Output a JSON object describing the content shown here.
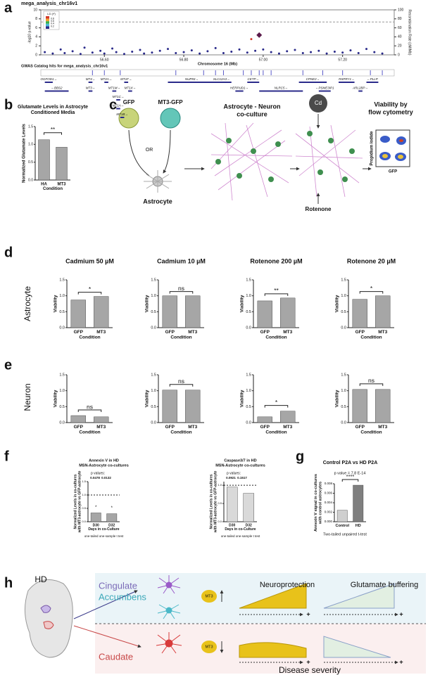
{
  "panels": {
    "a": {
      "label": "a",
      "title": "mega_analysis_chr16v1",
      "ylabel": "-log10 p-value",
      "y2label": "Recombination Rate (cM/Mb)",
      "xlabel": "Chromosome 16 (Mb)",
      "xlim": [
        56.44,
        57.33
      ],
      "xticks": [
        {
          "value": 56.6,
          "label": "56.60"
        },
        {
          "value": 56.8,
          "label": "56.80"
        },
        {
          "value": 57.0,
          "label": "57.00"
        },
        {
          "value": 57.2,
          "label": "57.20"
        }
      ],
      "ylim": [
        0,
        10
      ],
      "yticks": [
        0,
        2,
        4,
        6,
        8,
        10
      ],
      "y2lim": [
        0,
        100
      ],
      "y2ticks": [
        0,
        20,
        40,
        60,
        80,
        100
      ],
      "significance_line": 7.3,
      "legend_title": "LD (r²)",
      "legend_ticks": [
        0.8,
        0.6,
        0.4,
        0.2
      ],
      "points": {
        "x": [
          56.45,
          56.47,
          56.49,
          56.5,
          56.52,
          56.54,
          56.55,
          56.57,
          56.59,
          56.6,
          56.62,
          56.63,
          56.65,
          56.67,
          56.69,
          56.7,
          56.72,
          56.74,
          56.76,
          56.78,
          56.8,
          56.82,
          56.84,
          56.86,
          56.88,
          56.9,
          56.92,
          56.94,
          56.96,
          56.97,
          56.98,
          57.0,
          57.02,
          57.04,
          57.06,
          57.08,
          57.1,
          57.12,
          57.14,
          57.16,
          57.18,
          57.2,
          57.22,
          57.24,
          57.26,
          57.28,
          57.3
        ],
        "y": [
          0.6,
          0.3,
          1.2,
          0.4,
          0.8,
          0.2,
          1.6,
          0.5,
          0.9,
          0.3,
          1.4,
          0.6,
          0.2,
          0.7,
          1.1,
          0.3,
          0.5,
          0.9,
          1.3,
          0.4,
          0.6,
          1.0,
          0.3,
          0.8,
          1.5,
          0.4,
          0.7,
          1.2,
          0.5,
          3.5,
          0.9,
          1.2,
          0.6,
          0.3,
          0.8,
          1.1,
          0.4,
          0.6,
          0.9,
          0.3,
          0.7,
          0.5,
          1.0,
          0.4,
          1.3,
          0.6,
          0.3
        ]
      },
      "lead": {
        "x": 56.99,
        "y": 4.4
      },
      "gwas_title": "GWAS Catalog hits for mega_analysis_chr16v1",
      "gwas_hits": [
        56.57,
        56.6,
        56.64,
        56.78,
        56.85,
        56.88,
        56.9,
        56.95,
        56.97,
        56.99,
        57.0,
        57.02,
        57.1,
        57.15,
        57.2,
        57.27,
        57.3
      ],
      "genes": [
        {
          "name": "OGFOD1→",
          "start": 56.45,
          "end": 56.47
        },
        {
          "name": "←BBS2",
          "start": 56.45,
          "end": 56.51
        },
        {
          "name": "MT4→",
          "start": 56.56,
          "end": 56.57
        },
        {
          "name": "MT3→",
          "start": 56.56,
          "end": 56.57
        },
        {
          "name": "MT2A→",
          "start": 56.6,
          "end": 56.61
        },
        {
          "name": "MT1M→",
          "start": 56.62,
          "end": 56.63
        },
        {
          "name": "MT1F→",
          "start": 56.65,
          "end": 56.66
        },
        {
          "name": "MT1X→",
          "start": 56.66,
          "end": 56.67
        },
        {
          "name": "MT1C→",
          "start": 56.63,
          "end": 56.64
        },
        {
          "name": "MT1A→",
          "start": 56.63,
          "end": 56.64
        },
        {
          "name": "MT1B→",
          "start": 56.64,
          "end": 56.65
        },
        {
          "name": "NUP93→",
          "start": 56.76,
          "end": 56.88
        },
        {
          "name": "SLC12A3→",
          "start": 56.87,
          "end": 56.92
        },
        {
          "name": "HERPUD1→",
          "start": 56.93,
          "end": 56.95
        },
        {
          "name": "CETP→",
          "start": 56.96,
          "end": 56.99
        },
        {
          "name": "NLRC5→",
          "start": 56.99,
          "end": 57.1
        },
        {
          "name": "CPNE2→",
          "start": 57.09,
          "end": 57.16
        },
        {
          "name": "←PSME3IP1",
          "start": 57.14,
          "end": 57.17
        },
        {
          "name": "RSPRY1→",
          "start": 57.19,
          "end": 57.23
        },
        {
          "name": "ARL2BP→",
          "start": 57.24,
          "end": 57.25
        },
        {
          "name": "←PLLP",
          "start": 57.26,
          "end": 57.29
        }
      ]
    },
    "b": {
      "label": "b",
      "title": [
        "Glutamate Levels in Astrocyte",
        "Conditioned Media"
      ],
      "ylabel": [
        "Normalized Glutamate Levels"
      ],
      "xlabel": "Condition",
      "categories": [
        "HA",
        "MT3"
      ],
      "values": [
        1.13,
        0.92
      ],
      "color": "#a6a6a6",
      "ylim": [
        0,
        1.5
      ],
      "yticks": [
        {
          "value": 0,
          "label": "0.0"
        },
        0.5,
        {
          "value": 1,
          "label": "1.0"
        },
        1.5
      ],
      "sig": "**"
    },
    "c": {
      "label": "c",
      "gfp": "GFP",
      "mt3_gfp": "MT3-GFP",
      "or": "OR",
      "astrocyte": "Astrocyte",
      "coculture": [
        "Astrocyte - Neuron",
        "co-culture"
      ],
      "cd": "Cd",
      "rotenone": "Rotenone",
      "viability": [
        "Viability by",
        "flow cytometry"
      ],
      "flow_y": "Propidium iodide",
      "flow_x": "GFP"
    },
    "d": {
      "label": "d",
      "row_label": "Astrocyte",
      "charts": [
        {
          "title": "Cadmium 50 µM",
          "ylabel": [
            "Viability"
          ],
          "xlabel": "Condition",
          "categories": [
            "GFP",
            "MT3"
          ],
          "values": [
            0.87,
            0.98
          ],
          "color": "#a6a6a6",
          "ylim": [
            0,
            1.5
          ],
          "yticks": [
            {
              "value": 0,
              "label": "0.0"
            },
            0.5,
            {
              "value": 1,
              "label": "1.0"
            },
            1.5
          ],
          "sig": "*"
        },
        {
          "title": "Cadmium 10 µM",
          "ylabel": [
            "Viability"
          ],
          "xlabel": "Condition",
          "categories": [
            "GFP",
            "MT3"
          ],
          "values": [
            1.0,
            1.0
          ],
          "color": "#a6a6a6",
          "ylim": [
            0,
            1.5
          ],
          "yticks": [
            {
              "value": 0,
              "label": "0.0"
            },
            0.5,
            {
              "value": 1,
              "label": "1.0"
            },
            1.5
          ],
          "sig": "ns"
        },
        {
          "title": "Rotenone 200 µM",
          "ylabel": [
            "Viability"
          ],
          "xlabel": "Condition",
          "categories": [
            "GFP",
            "MT3"
          ],
          "values": [
            0.84,
            0.93
          ],
          "color": "#a6a6a6",
          "ylim": [
            0,
            1.5
          ],
          "yticks": [
            {
              "value": 0,
              "label": "0.0"
            },
            0.5,
            {
              "value": 1,
              "label": "1.0"
            },
            1.5
          ],
          "sig": "**"
        },
        {
          "title": "Rotenone 20 µM",
          "ylabel": [
            "Viability"
          ],
          "xlabel": "Condition",
          "categories": [
            "GFP",
            "MT3"
          ],
          "values": [
            0.89,
            1.0
          ],
          "color": "#a6a6a6",
          "ylim": [
            0,
            1.5
          ],
          "yticks": [
            {
              "value": 0,
              "label": "0.0"
            },
            0.5,
            {
              "value": 1,
              "label": "1.0"
            },
            1.5
          ],
          "sig": "*"
        }
      ]
    },
    "e": {
      "label": "e",
      "row_label": "Neuron",
      "charts": [
        {
          "ylabel": [
            "Viability"
          ],
          "xlabel": "Condition",
          "categories": [
            "GFP",
            "MT3"
          ],
          "values": [
            0.22,
            0.18
          ],
          "color": "#a6a6a6",
          "ylim": [
            0,
            1.5
          ],
          "yticks": [
            {
              "value": 0,
              "label": "0.0"
            },
            0.5,
            {
              "value": 1,
              "label": "1.0"
            },
            1.5
          ],
          "sig": "ns"
        },
        {
          "ylabel": [
            "Viability"
          ],
          "xlabel": "Condition",
          "categories": [
            "GFP",
            "MT3"
          ],
          "values": [
            1.02,
            1.02
          ],
          "color": "#a6a6a6",
          "ylim": [
            0,
            1.5
          ],
          "yticks": [
            {
              "value": 0,
              "label": "0.0"
            },
            0.5,
            {
              "value": 1,
              "label": "1.0"
            },
            1.5
          ],
          "sig": "ns"
        },
        {
          "ylabel": [
            "Viability"
          ],
          "xlabel": "Condition",
          "categories": [
            "GFP",
            "MT3"
          ],
          "values": [
            0.18,
            0.36
          ],
          "color": "#a6a6a6",
          "ylim": [
            0,
            1.5
          ],
          "yticks": [
            {
              "value": 0,
              "label": "0.0"
            },
            0.5,
            {
              "value": 1,
              "label": "1.0"
            },
            1.5
          ],
          "sig": "*"
        },
        {
          "ylabel": [
            "Viability"
          ],
          "xlabel": "Condition",
          "categories": [
            "GFP",
            "MT3"
          ],
          "values": [
            1.04,
            1.04
          ],
          "color": "#a6a6a6",
          "ylim": [
            0,
            1.5
          ],
          "yticks": [
            {
              "value": 0,
              "label": "0.0"
            },
            0.5,
            {
              "value": 1,
              "label": "1.0"
            },
            1.5
          ],
          "sig": "ns"
        }
      ]
    },
    "f": {
      "label": "f",
      "charts": [
        {
          "title": [
            "Annexin V in HD",
            "MSN-Astrocyte co-cultures"
          ],
          "p_label": "p values:",
          "p_values": [
            0.0478,
            0.0132
          ],
          "ylabel": [
            "Normalized Levels in co-cultures",
            "with MT3-astrocyte vs GFP-astrocyte"
          ],
          "xlabel": "Days in co-Culture",
          "note": "one-tailed one-sample t test",
          "categories": [
            "D30",
            "D32"
          ],
          "values": [
            0.33,
            0.3
          ],
          "color": "#a6a6a6",
          "ylim": [
            0,
            1.5
          ],
          "yticks": [
            {
              "value": 0,
              "label": "0.0"
            },
            0.5,
            {
              "value": 1,
              "label": "1.0"
            },
            1.5
          ],
          "reference_line": 1,
          "bar_sigs": [
            "*",
            "*"
          ]
        },
        {
          "title": [
            "Caspase3/7 in HD",
            "MSN-Astrocyte co-cultures"
          ],
          "p_label": "p values:",
          "p_values": [
            0.0921,
            0.1517
          ],
          "ylabel": [
            "Normalized Levels in co-cultures",
            "with MT3-astrocyte vs GFP-astrocyte"
          ],
          "xlabel": "Days in co-Culture",
          "note": "one-tailed one-sample t test",
          "categories": [
            "D30",
            "D32"
          ],
          "values": [
            0.95,
            0.78
          ],
          "color": "#d9d9d9",
          "ylim": [
            0,
            1.1
          ],
          "yticks": [
            {
              "value": 0,
              "label": "0.0"
            },
            0.5,
            {
              "value": 1,
              "label": "1.0"
            }
          ],
          "reference_line": 1
        }
      ]
    },
    "g": {
      "label": "g",
      "title": [
        "Control P2A vs HD P2A"
      ],
      "p_text": "p value = 7.8 E-14",
      "sig": "****",
      "ylabel": [
        "Annexin V signal in co-cultures",
        "with control astrocytes"
      ],
      "note": "Two-tailed unpaired t-test",
      "categories": [
        "Control",
        "HD"
      ],
      "values": [
        0.0024,
        0.0077
      ],
      "colors": [
        "#cfcfcf",
        "#7f7f7f"
      ],
      "ylim": [
        0,
        0.008
      ],
      "yticks": [
        {
          "value": 0,
          "label": "0.000"
        },
        {
          "value": 0.002,
          "label": "0.002"
        },
        {
          "value": 0.004,
          "label": "0.004"
        },
        {
          "value": 0.006,
          "label": "0.006"
        },
        {
          "value": 0.008,
          "label": "0.008"
        }
      ]
    },
    "h": {
      "label": "h",
      "hd": "HD",
      "cingulate": "Cingulate",
      "accumbens": "Accumbens",
      "neuroprotection": "Neuroprotection",
      "glutamate": "Glutamate buffering",
      "mt3_up": "MT3",
      "mt3_down": "MT3",
      "caudate": "Caudate",
      "severity": "Disease severity",
      "plus": [
        "+",
        "+",
        "+",
        "+"
      ]
    }
  }
}
